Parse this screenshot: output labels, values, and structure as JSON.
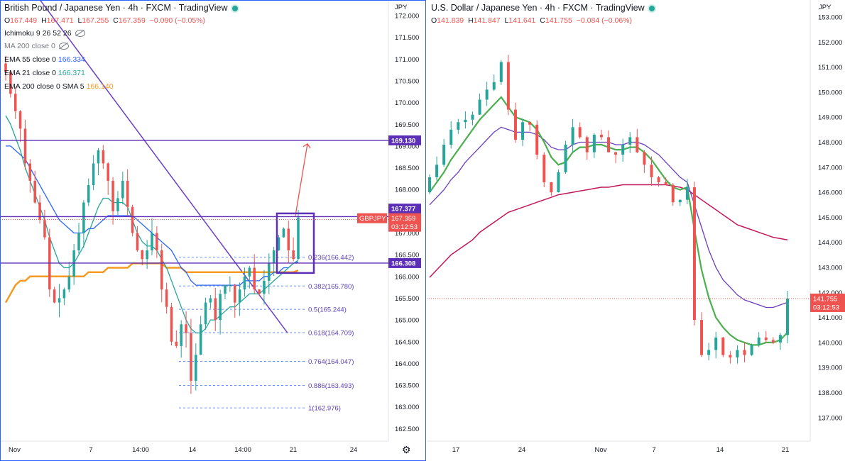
{
  "left": {
    "title": "British Pound / Japanese Yen · 4h · FXCM · TradingView",
    "ohlc": {
      "o_label": "O",
      "o": "167.449",
      "h_label": "H",
      "h": "167.471",
      "l_label": "L",
      "l": "167.255",
      "c_label": "C",
      "c": "167.359",
      "chg": "−0.090 (−0.05%)"
    },
    "indicators": [
      {
        "label": "Ichimoku 9 26 52 26",
        "value": "",
        "hidden": true
      },
      {
        "label": "MA 200 close 0",
        "value": "",
        "hidden": true,
        "muted": true
      },
      {
        "label": "EMA 55 close 0",
        "value": "166.334",
        "color": "#2962ff"
      },
      {
        "label": "EMA 21 close 0",
        "value": "166.371",
        "color": "#26a69a"
      },
      {
        "label": "EMA 200 close 0 SMA 5",
        "value": "166.140",
        "color": "#f59a23"
      }
    ],
    "currency": "JPY",
    "symbol_tag": "GBPJPY",
    "price_tag": "167.359",
    "countdown": "03:12:53",
    "level_tags": [
      "169.130",
      "167.377",
      "166.308"
    ],
    "fib_labels": [
      "0.236(166.442)",
      "0.382(165.780)",
      "0.5(165.244)",
      "0.618(164.709)",
      "0.764(164.047)",
      "0.886(163.493)",
      "1(162.976)"
    ],
    "x_labels": [
      "Nov",
      "7",
      "14:00",
      "14",
      "14:00",
      "21",
      "24"
    ],
    "colors": {
      "up": "#26a69a",
      "down": "#ef5350",
      "level": "#5c2fb8",
      "trend": "#6b3fc4",
      "ema21": "#26a69a",
      "ema55": "#2962ff",
      "ema200": "#f59a23",
      "fib": "#2962ff"
    }
  },
  "right": {
    "title": "U.S. Dollar / Japanese Yen · 4h · FXCM · TradingView",
    "ohlc": {
      "o_label": "O",
      "o": "141.839",
      "h_label": "H",
      "h": "141.847",
      "l_label": "L",
      "l": "141.641",
      "c_label": "C",
      "c": "141.755",
      "chg": "−0.084 (−0.06%)"
    },
    "currency": "JPY",
    "price_tag": "141.755",
    "countdown": "03:12:53",
    "x_labels": [
      "17",
      "24",
      "Nov",
      "7",
      "14",
      "21"
    ],
    "colors": {
      "up": "#26a69a",
      "down": "#ef5350",
      "ma_green": "#4caf50",
      "ma_purple": "#6a3fc0",
      "ma_red": "#c2185b"
    }
  },
  "chart_data": [
    {
      "type": "line",
      "title": "British Pound / Japanese Yen · 4h · FXCM · TradingView",
      "ylabel": "JPY",
      "ylim": [
        162.3,
        172.4
      ],
      "y_ticks": [
        162.5,
        163.0,
        163.5,
        164.0,
        164.5,
        165.0,
        165.5,
        166.0,
        166.5,
        167.0,
        167.5,
        168.0,
        168.5,
        169.0,
        169.5,
        170.0,
        170.5,
        171.0,
        171.5,
        172.0
      ],
      "x_tick_labels": [
        "Nov",
        "7",
        "14:00",
        "14",
        "14:00",
        "21",
        "24"
      ],
      "series": [
        {
          "name": "GBPJPY close",
          "values": [
            170.7,
            170.2,
            169.8,
            169.4,
            168.6,
            168.2,
            167.7,
            167.3,
            166.9,
            165.7,
            165.4,
            165.5,
            165.7,
            166.0,
            166.6,
            167.0,
            167.7,
            168.1,
            168.6,
            168.9,
            168.6,
            168.2,
            167.5,
            167.8,
            168.2,
            167.6,
            167.0,
            166.6,
            166.4,
            166.6,
            167.0,
            166.6,
            165.7,
            165.3,
            164.5,
            164.4,
            164.9,
            164.7,
            163.6,
            164.2,
            164.9,
            165.4,
            165.5,
            165.0,
            165.6,
            165.8,
            165.8,
            165.4,
            165.7,
            166.0,
            166.2,
            165.7,
            165.6,
            165.9,
            166.3,
            166.6,
            166.9,
            167.1,
            166.6,
            166.4,
            167.359
          ]
        },
        {
          "name": "EMA 21",
          "values": [
            169.7,
            169.5,
            169.2,
            168.9,
            168.5,
            168.2,
            167.9,
            167.6,
            167.3,
            166.9,
            166.6,
            166.3,
            166.2,
            166.2,
            166.3,
            166.5,
            166.7,
            167.0,
            167.3,
            167.6,
            167.8,
            167.8,
            167.7,
            167.7,
            167.7,
            167.6,
            167.3,
            167.0,
            166.8,
            166.7,
            166.7,
            166.6,
            166.4,
            166.2,
            165.9,
            165.6,
            165.3,
            165.0,
            164.8,
            164.7,
            164.7,
            164.8,
            165.0,
            165.0,
            165.1,
            165.2,
            165.3,
            165.3,
            165.4,
            165.5,
            165.6,
            165.6,
            165.6,
            165.7,
            165.8,
            165.9,
            166.0,
            166.1,
            166.2,
            166.3,
            166.371
          ]
        },
        {
          "name": "EMA 55",
          "values": [
            169.0,
            169.0,
            168.9,
            168.8,
            168.7,
            168.5,
            168.3,
            168.1,
            167.9,
            167.7,
            167.5,
            167.3,
            167.2,
            167.1,
            167.0,
            167.0,
            167.0,
            167.1,
            167.1,
            167.2,
            167.3,
            167.4,
            167.4,
            167.4,
            167.4,
            167.4,
            167.4,
            167.3,
            167.2,
            167.1,
            167.0,
            166.9,
            166.8,
            166.7,
            166.6,
            166.4,
            166.2,
            166.1,
            165.9,
            165.8,
            165.8,
            165.8,
            165.8,
            165.8,
            165.8,
            165.8,
            165.8,
            165.8,
            165.8,
            165.9,
            165.9,
            165.9,
            165.9,
            166.0,
            166.0,
            166.1,
            166.1,
            166.2,
            166.2,
            166.3,
            166.334
          ]
        },
        {
          "name": "EMA 200 SMA 5",
          "values": [
            165.4,
            165.6,
            165.8,
            165.9,
            165.9,
            166.0,
            166.0,
            166.0,
            166.0,
            166.0,
            166.0,
            166.0,
            166.0,
            166.0,
            166.0,
            166.0,
            166.0,
            166.1,
            166.1,
            166.1,
            166.1,
            166.2,
            166.2,
            166.2,
            166.2,
            166.2,
            166.3,
            166.3,
            166.3,
            166.3,
            166.3,
            166.3,
            166.3,
            166.2,
            166.2,
            166.2,
            166.2,
            166.1,
            166.1,
            166.1,
            166.1,
            166.1,
            166.1,
            166.1,
            166.1,
            166.1,
            166.1,
            166.1,
            166.1,
            166.1,
            166.1,
            166.1,
            166.1,
            166.1,
            166.1,
            166.1,
            166.1,
            166.1,
            166.1,
            166.1,
            166.14
          ]
        }
      ],
      "horizontal_levels": [
        169.13,
        167.377,
        166.308
      ],
      "fibonacci": [
        {
          "ratio": 0.236,
          "value": 166.442
        },
        {
          "ratio": 0.382,
          "value": 165.78
        },
        {
          "ratio": 0.5,
          "value": 165.244
        },
        {
          "ratio": 0.618,
          "value": 164.709
        },
        {
          "ratio": 0.764,
          "value": 164.047
        },
        {
          "ratio": 0.886,
          "value": 163.493
        },
        {
          "ratio": 1,
          "value": 162.976
        }
      ]
    },
    {
      "type": "line",
      "title": "U.S. Dollar / Japanese Yen · 4h · FXCM · TradingView",
      "ylabel": "JPY",
      "ylim": [
        136.3,
        153.4
      ],
      "y_ticks": [
        137.0,
        138.0,
        139.0,
        140.0,
        141.0,
        142.0,
        143.0,
        144.0,
        145.0,
        146.0,
        147.0,
        148.0,
        149.0,
        150.0,
        151.0,
        152.0,
        153.0
      ],
      "x_tick_labels": [
        "17",
        "24",
        "Nov",
        "7",
        "14",
        "21"
      ],
      "series": [
        {
          "name": "USDJPY close",
          "values": [
            146.6,
            147.1,
            147.9,
            148.5,
            148.8,
            148.9,
            149.1,
            149.7,
            150.1,
            150.4,
            151.2,
            149.3,
            148.1,
            148.8,
            148.7,
            147.5,
            146.4,
            146.0,
            146.8,
            147.9,
            148.6,
            148.2,
            147.6,
            148.3,
            148.2,
            147.6,
            147.5,
            147.9,
            148.2,
            147.6,
            147.1,
            146.6,
            146.4,
            146.3,
            145.6,
            145.7,
            146.2,
            140.9,
            139.5,
            139.7,
            140.2,
            139.5,
            139.4,
            139.7,
            139.5,
            139.9,
            140.2,
            140.1,
            140.0,
            140.3,
            141.755
          ]
        },
        {
          "name": "MA green",
          "values": [
            146.0,
            146.4,
            146.8,
            147.3,
            147.7,
            148.1,
            148.5,
            148.9,
            149.2,
            149.5,
            149.8,
            149.4,
            149.0,
            148.9,
            148.8,
            148.5,
            148.0,
            147.4,
            147.1,
            147.2,
            147.6,
            147.8,
            147.8,
            147.9,
            147.9,
            147.8,
            147.7,
            147.7,
            147.8,
            147.8,
            147.6,
            147.3,
            146.9,
            146.5,
            146.2,
            146.1,
            146.2,
            144.5,
            142.9,
            141.8,
            141.0,
            140.6,
            140.3,
            140.1,
            140.0,
            139.9,
            139.9,
            140.0,
            140.0,
            140.1,
            140.4
          ]
        },
        {
          "name": "MA purple",
          "values": [
            145.5,
            145.8,
            146.1,
            146.5,
            146.8,
            147.2,
            147.5,
            147.8,
            148.1,
            148.4,
            148.6,
            148.5,
            148.4,
            148.4,
            148.4,
            148.3,
            148.1,
            147.8,
            147.7,
            147.7,
            147.9,
            148.0,
            148.0,
            148.0,
            148.0,
            148.0,
            147.9,
            147.9,
            148.0,
            148.0,
            147.9,
            147.7,
            147.5,
            147.2,
            146.9,
            146.6,
            146.4,
            145.5,
            144.6,
            143.7,
            143.0,
            142.5,
            142.2,
            141.9,
            141.7,
            141.6,
            141.5,
            141.4,
            141.4,
            141.5,
            141.6
          ]
        },
        {
          "name": "MA red",
          "values": [
            142.6,
            142.9,
            143.2,
            143.5,
            143.7,
            143.9,
            144.1,
            144.4,
            144.6,
            144.8,
            145.0,
            145.2,
            145.3,
            145.4,
            145.5,
            145.6,
            145.7,
            145.8,
            145.9,
            145.95,
            146.0,
            146.05,
            146.1,
            146.15,
            146.2,
            146.2,
            146.25,
            146.3,
            146.3,
            146.3,
            146.3,
            146.3,
            146.3,
            146.3,
            146.25,
            146.2,
            146.1,
            145.9,
            145.7,
            145.5,
            145.3,
            145.1,
            144.9,
            144.7,
            144.6,
            144.5,
            144.4,
            144.3,
            144.2,
            144.15,
            144.1
          ]
        }
      ]
    }
  ]
}
